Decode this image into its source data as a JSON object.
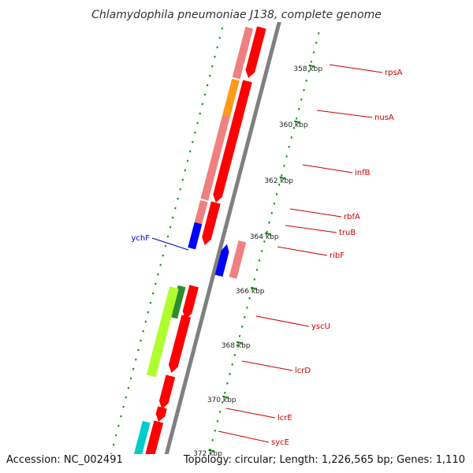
{
  "map": {
    "title": "Chlamydophila pneumoniae J138, complete genome",
    "accession": "Accession: NC_002491",
    "topology": "Topology: circular; Length: 1,226,565 bp; Genes: 1,110"
  },
  "ticks": [
    {
      "label": "358 kbp"
    },
    {
      "label": "360 kbp"
    },
    {
      "label": "362 kbp"
    },
    {
      "label": "364 kbp"
    },
    {
      "label": "366 kbp"
    },
    {
      "label": "368 kbp"
    },
    {
      "label": "370 kbp"
    },
    {
      "label": "372 kbp"
    }
  ],
  "genes": [
    {
      "label": "rpsA",
      "color": "#cc0000"
    },
    {
      "label": "nusA",
      "color": "#cc0000"
    },
    {
      "label": "infB",
      "color": "#cc0000"
    },
    {
      "label": "rbfA",
      "color": "#cc0000"
    },
    {
      "label": "truB",
      "color": "#cc0000"
    },
    {
      "label": "ribF",
      "color": "#cc0000"
    },
    {
      "label": "ychF",
      "color": "#0000cc"
    },
    {
      "label": "yscU",
      "color": "#cc0000"
    },
    {
      "label": "lcrD",
      "color": "#cc0000"
    },
    {
      "label": "lcrE",
      "color": "#cc0000"
    },
    {
      "label": "sycE",
      "color": "#cc0000"
    }
  ],
  "colors": {
    "backbone": "#808080",
    "cds": "#ff0000",
    "cds_light": "#f08080",
    "cog_orange": "#ff9a1a",
    "cog_green": "#2e8b2e",
    "cog_lime": "#adff2f",
    "cog_blue": "#0000ff",
    "cog_cyan": "#00cccc",
    "cog_olive": "#b8ae6a",
    "tick_green": "#119911"
  }
}
